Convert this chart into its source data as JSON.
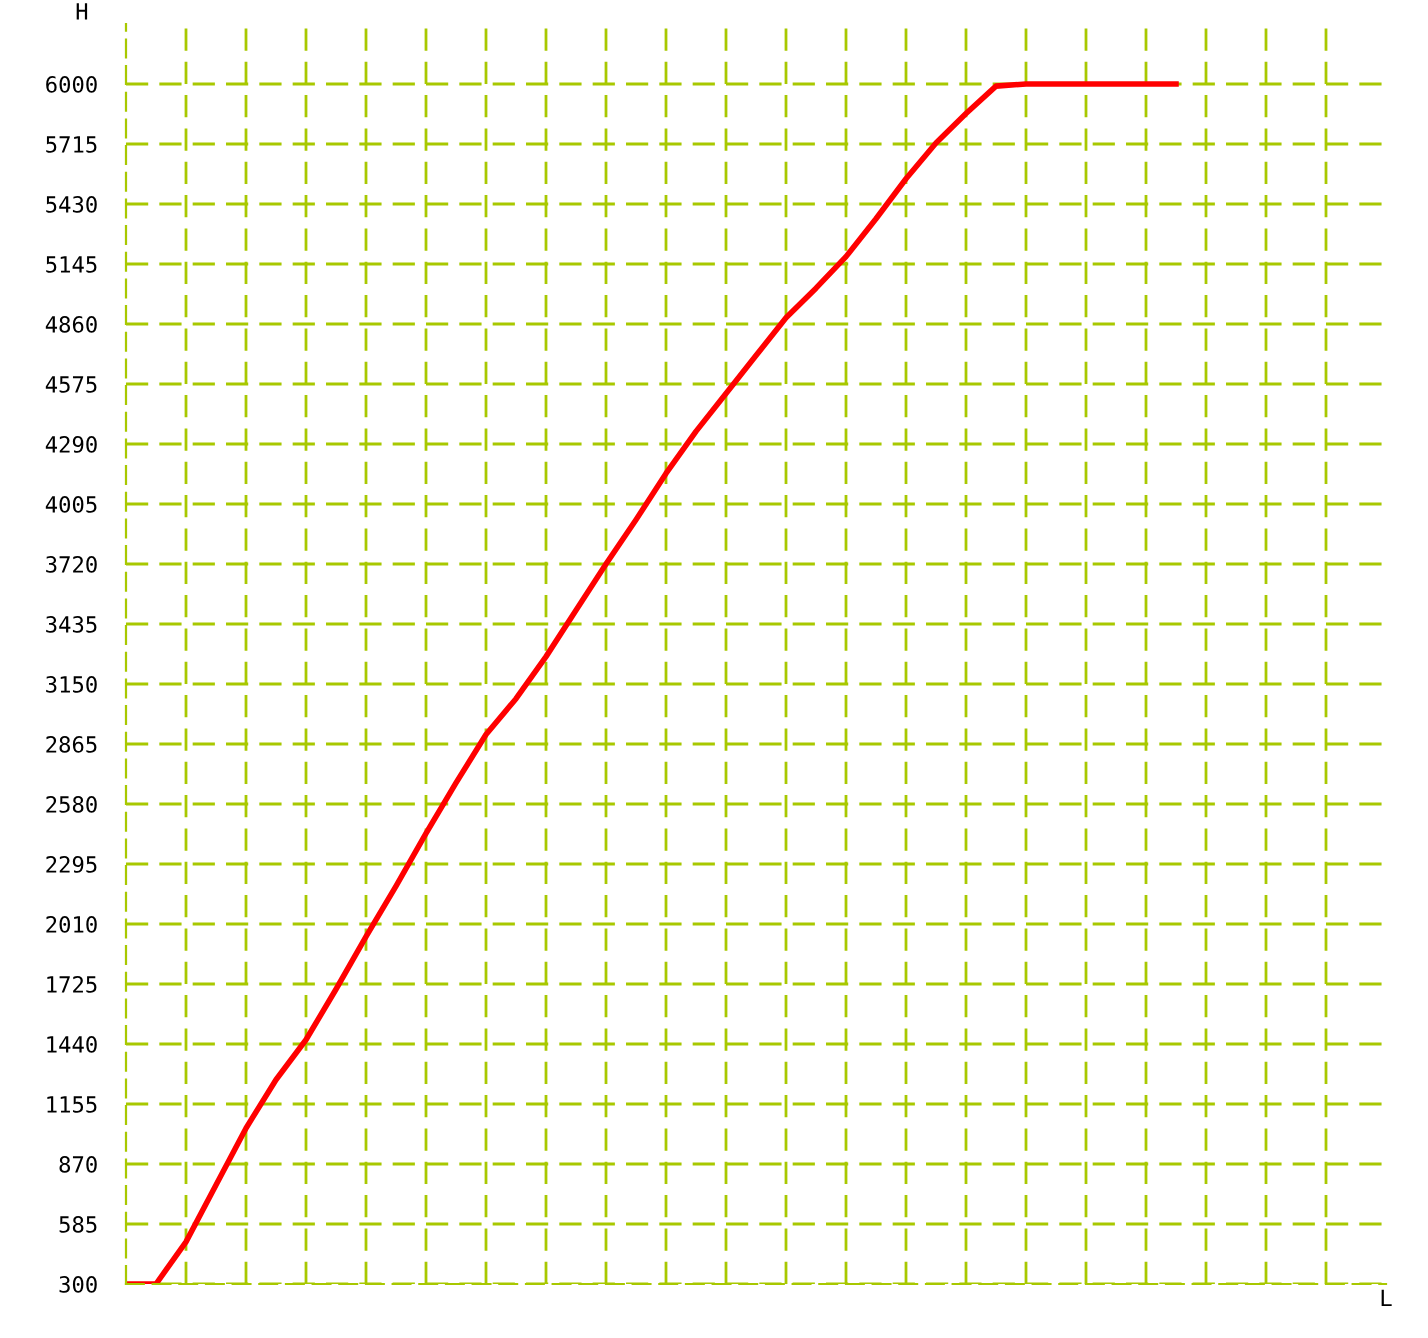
{
  "chart_data": {
    "type": "line",
    "annotations": [
      "L"
    ],
    "ylabel": "H",
    "categories": [
      null,
      null,
      null,
      null,
      null,
      null,
      null,
      null,
      null,
      null,
      null,
      null,
      null,
      null,
      null,
      null,
      null,
      null,
      null,
      null,
      null,
      null,
      null,
      null,
      null,
      null,
      null,
      null,
      null,
      null,
      null,
      null,
      null,
      null,
      null,
      null
    ],
    "series": [
      {
        "color": "#ff0000",
        "values": [
          300,
          300,
          500,
          770,
          1040,
          1270,
          1460,
          1700,
          1950,
          2190,
          2440,
          2680,
          2910,
          3080,
          3280,
          3500,
          3720,
          3930,
          4150,
          4350,
          4530,
          4710,
          4890,
          5030,
          5180,
          5360,
          5550,
          5720,
          5860,
          5990,
          6000,
          6000,
          6000,
          6000,
          6000,
          6000
        ]
      }
    ],
    "ylim": [
      300,
      6285
    ],
    "yticks": [
      300,
      585,
      870,
      1155,
      1440,
      1725,
      2010,
      2295,
      2580,
      2865,
      3150,
      3435,
      3720,
      4005,
      4290,
      4575,
      4860,
      5145,
      5430,
      5715,
      6000
    ],
    "tick_labels": "y",
    "grid": true,
    "marker": "none",
    "line_style": "solid"
  }
}
